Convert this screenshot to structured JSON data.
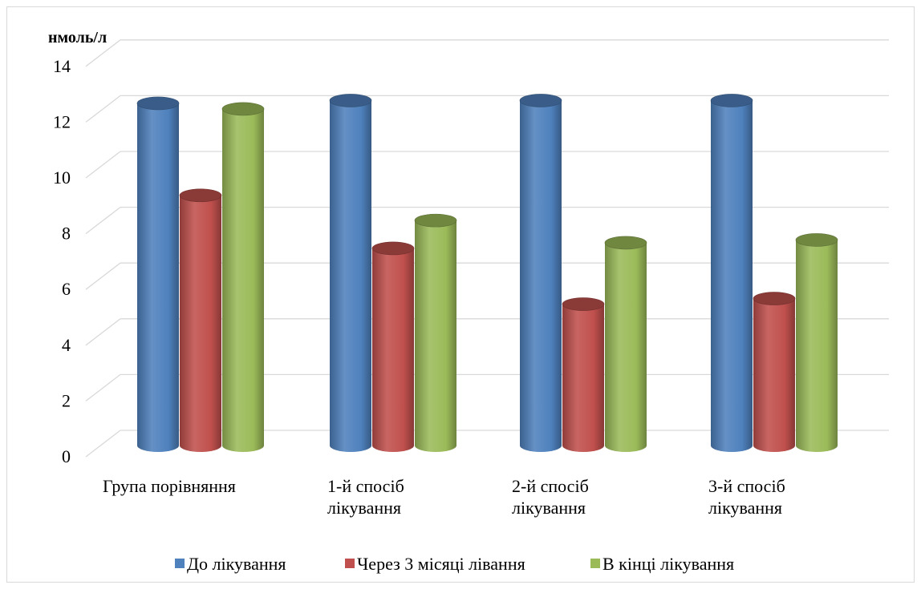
{
  "chart_data": {
    "type": "bar",
    "style": "3d-cylinder",
    "ylabel": "нмоль/л",
    "ylim": [
      0,
      14
    ],
    "yticks": [
      0,
      2,
      4,
      6,
      8,
      10,
      12,
      14
    ],
    "grid": true,
    "legend_position": "bottom",
    "categories": [
      [
        "Група порівняння"
      ],
      [
        "1-й спосіб",
        "лікування"
      ],
      [
        "2-й спосіб",
        "лікування"
      ],
      [
        "3-й спосіб",
        "лікування"
      ]
    ],
    "series": [
      {
        "name": "До лікування",
        "color": "#4f81bd",
        "values": [
          12.3,
          12.4,
          12.4,
          12.4
        ]
      },
      {
        "name": "Через 3 місяці лівання",
        "color": "#c0504d",
        "values": [
          9.0,
          7.1,
          5.1,
          5.3
        ]
      },
      {
        "name": "В кінці лікування",
        "color": "#9bbb59",
        "values": [
          12.1,
          8.1,
          7.3,
          7.4
        ]
      }
    ]
  }
}
